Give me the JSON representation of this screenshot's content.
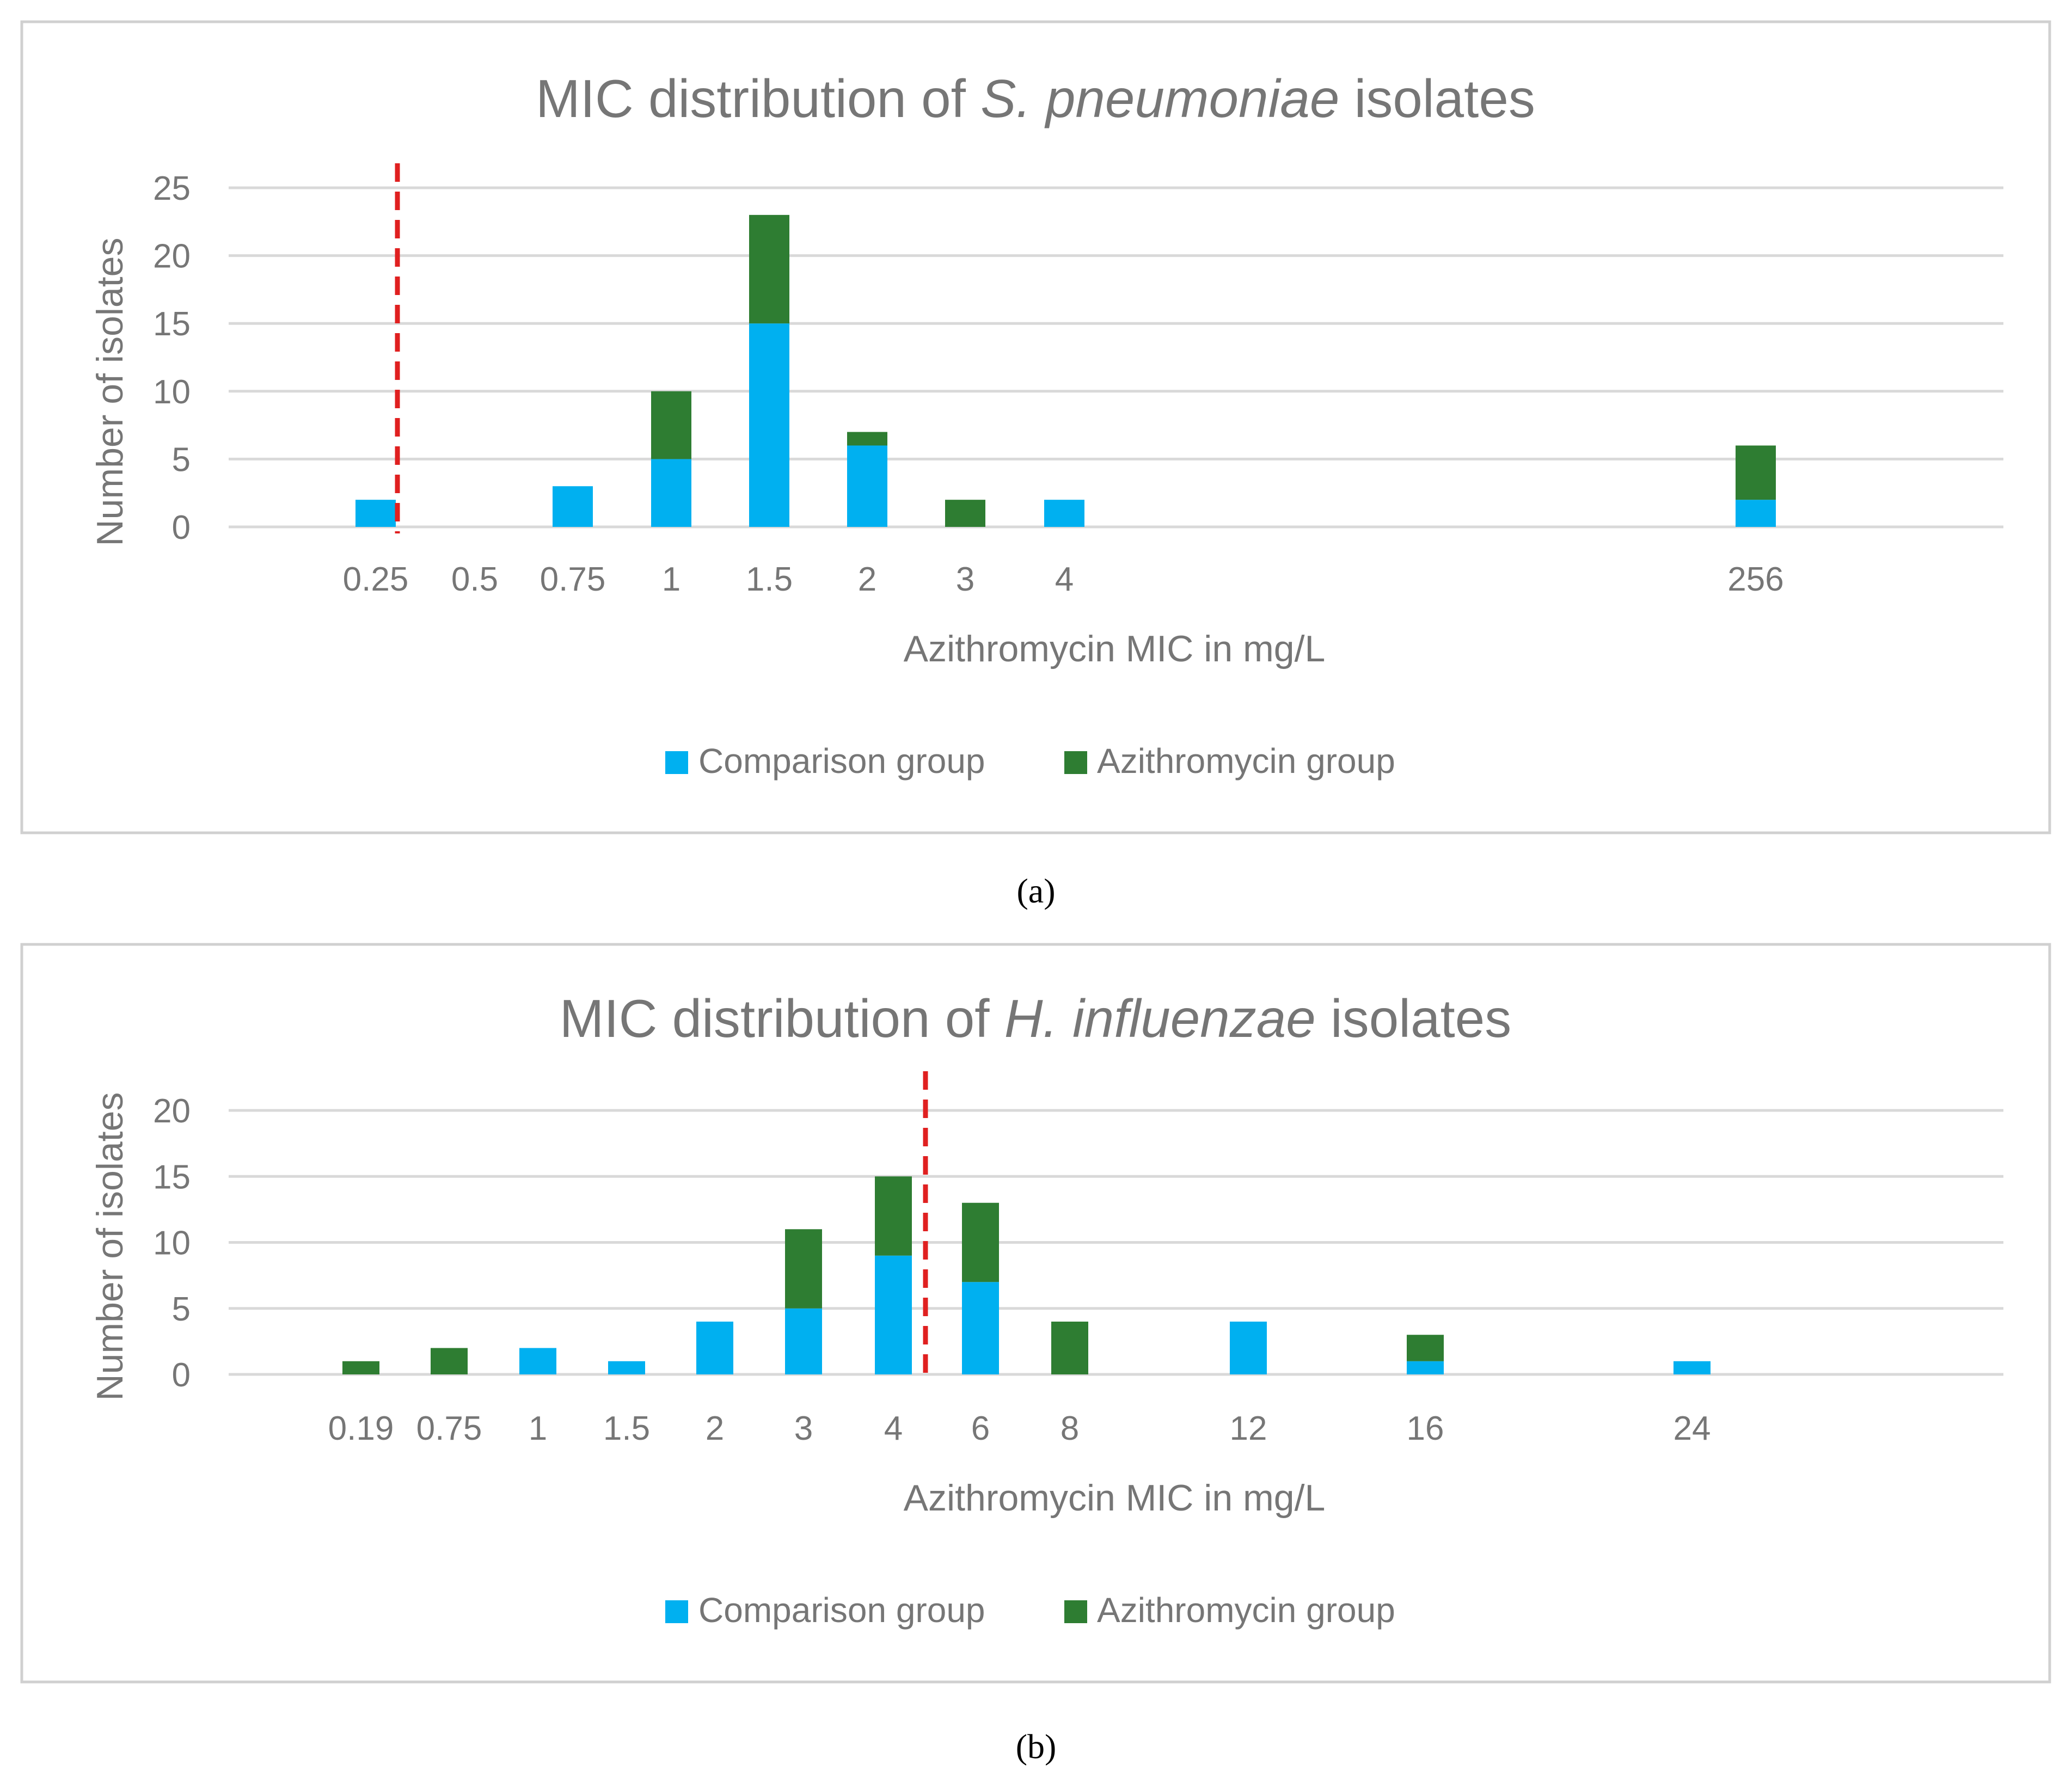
{
  "colors": {
    "comparison": "#00B0F0",
    "azithromycin": "#2E7D32",
    "breakpoint": "#E02020",
    "gridline": "#D9D9D9",
    "frame": "#D0D0D0",
    "text": "#767676"
  },
  "chart_data": [
    {
      "type": "bar",
      "stacked": true,
      "title_prefix": "MIC distribution of ",
      "title_species": "S. pneumoniae",
      "title_suffix": " isolates",
      "xlabel": "Azithromycin MIC in mg/L",
      "ylabel": "Number of isolates",
      "ylim": [
        0,
        25
      ],
      "yticks": [
        0,
        5,
        10,
        15,
        20,
        25
      ],
      "grid": true,
      "legend_position": "bottom",
      "categories": [
        "0.25",
        "0.5",
        "0.75",
        "1",
        "1.5",
        "2",
        "3",
        "4",
        "256"
      ],
      "series": [
        {
          "name": "Comparison group",
          "values": [
            2,
            0,
            3,
            5,
            15,
            6,
            0,
            2,
            2
          ]
        },
        {
          "name": "Azithromycin group",
          "values": [
            0,
            0,
            0,
            5,
            8,
            1,
            2,
            0,
            4
          ]
        }
      ],
      "breakpoint": {
        "x": "0.25",
        "style": "dashed"
      },
      "caption": "(a)"
    },
    {
      "type": "bar",
      "stacked": true,
      "title_prefix": "MIC distribution of ",
      "title_species": "H. influenzae",
      "title_suffix": " isolates",
      "xlabel": "Azithromycin MIC in mg/L",
      "ylabel": "Number of isolates",
      "ylim": [
        0,
        20
      ],
      "yticks": [
        0,
        5,
        10,
        15,
        20
      ],
      "grid": true,
      "legend_position": "bottom",
      "categories": [
        "0.19",
        "0.75",
        "1",
        "1.5",
        "2",
        "3",
        "4",
        "6",
        "8",
        "12",
        "16",
        "24"
      ],
      "series": [
        {
          "name": "Comparison group",
          "values": [
            0,
            0,
            2,
            1,
            4,
            5,
            9,
            7,
            0,
            4,
            1,
            1
          ]
        },
        {
          "name": "Azithromycin group",
          "values": [
            1,
            2,
            0,
            0,
            0,
            6,
            6,
            6,
            4,
            0,
            2,
            0
          ]
        }
      ],
      "breakpoint": {
        "x": "4",
        "style": "dashed"
      },
      "caption": "(b)"
    }
  ]
}
